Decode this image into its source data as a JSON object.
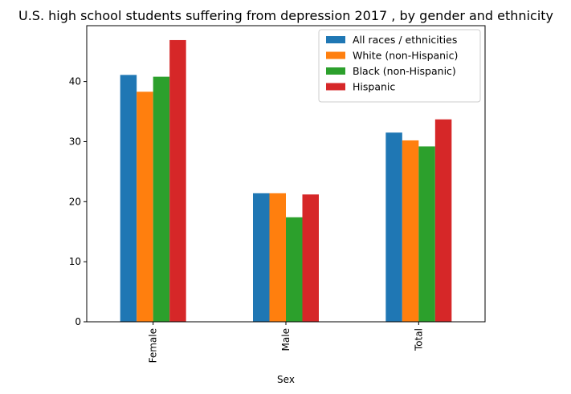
{
  "chart_data": {
    "type": "bar",
    "title": "U.S. high school students suffering from depression 2017 , by gender and ethnicity",
    "xlabel": "Sex",
    "ylabel": "",
    "categories": [
      "Female",
      "Male",
      "Total"
    ],
    "series": [
      {
        "name": "All races / ethnicities",
        "color": "#1f77b4",
        "values": [
          41.1,
          21.4,
          31.5
        ]
      },
      {
        "name": "White (non-Hispanic)",
        "color": "#ff7f0e",
        "values": [
          38.3,
          21.4,
          30.2
        ]
      },
      {
        "name": "Black (non-Hispanic)",
        "color": "#2ca02c",
        "values": [
          40.8,
          17.4,
          29.2
        ]
      },
      {
        "name": "Hispanic",
        "color": "#d62728",
        "values": [
          46.9,
          21.2,
          33.7
        ]
      }
    ],
    "yticks": [
      "0",
      "10",
      "20",
      "30",
      "40"
    ],
    "ylim": [
      0,
      49.3
    ],
    "legend_position": "upper-right",
    "grid": false
  }
}
